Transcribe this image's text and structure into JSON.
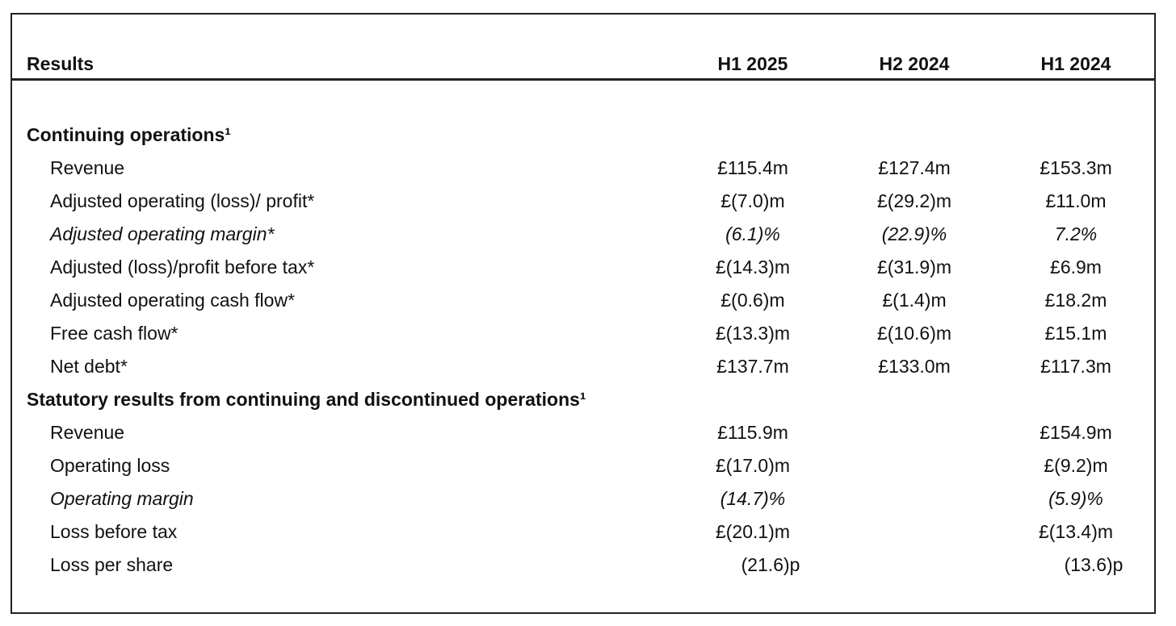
{
  "header": {
    "title": "Results",
    "columns": [
      "H1 2025",
      "H2 2024",
      "H1 2024"
    ]
  },
  "sections": [
    {
      "heading": "Continuing operations¹",
      "rows": [
        {
          "label": "Revenue",
          "values": [
            "£115.4m",
            "£127.4m",
            "£153.3m"
          ]
        },
        {
          "label": "Adjusted operating (loss)/ profit*",
          "values": [
            "£(7.0)m",
            "£(29.2)m",
            "£11.0m"
          ]
        },
        {
          "label": "Adjusted operating margin*",
          "values": [
            "(6.1)%",
            "(22.9)%",
            "7.2%"
          ]
        },
        {
          "label": "Adjusted (loss)/profit before tax*",
          "values": [
            "£(14.3)m",
            "£(31.9)m",
            "£6.9m"
          ]
        },
        {
          "label": "Adjusted operating cash flow*",
          "values": [
            "£(0.6)m",
            "£(1.4)m",
            "£18.2m"
          ]
        },
        {
          "label": "Free cash flow*",
          "values": [
            "£(13.3)m",
            "£(10.6)m",
            "£15.1m"
          ]
        },
        {
          "label": "Net debt*",
          "values": [
            "£137.7m",
            "£133.0m",
            "£117.3m"
          ]
        }
      ]
    },
    {
      "heading": "Statutory results from continuing and discontinued operations¹",
      "rows": [
        {
          "label": "Revenue",
          "values": [
            "£115.9m",
            null,
            "£154.9m"
          ]
        },
        {
          "label": "Operating loss",
          "values": [
            "£(17.0)m",
            null,
            "£(9.2)m"
          ]
        },
        {
          "label": "Operating margin",
          "values": [
            "(14.7)%",
            null,
            "(5.9)%"
          ]
        },
        {
          "label": "Loss before tax",
          "values": [
            "£(20.1)m",
            null,
            "£(13.4)m"
          ]
        },
        {
          "label": "Loss per share",
          "values": [
            "(21.6)p",
            null,
            "(13.6)p"
          ]
        }
      ]
    }
  ]
}
